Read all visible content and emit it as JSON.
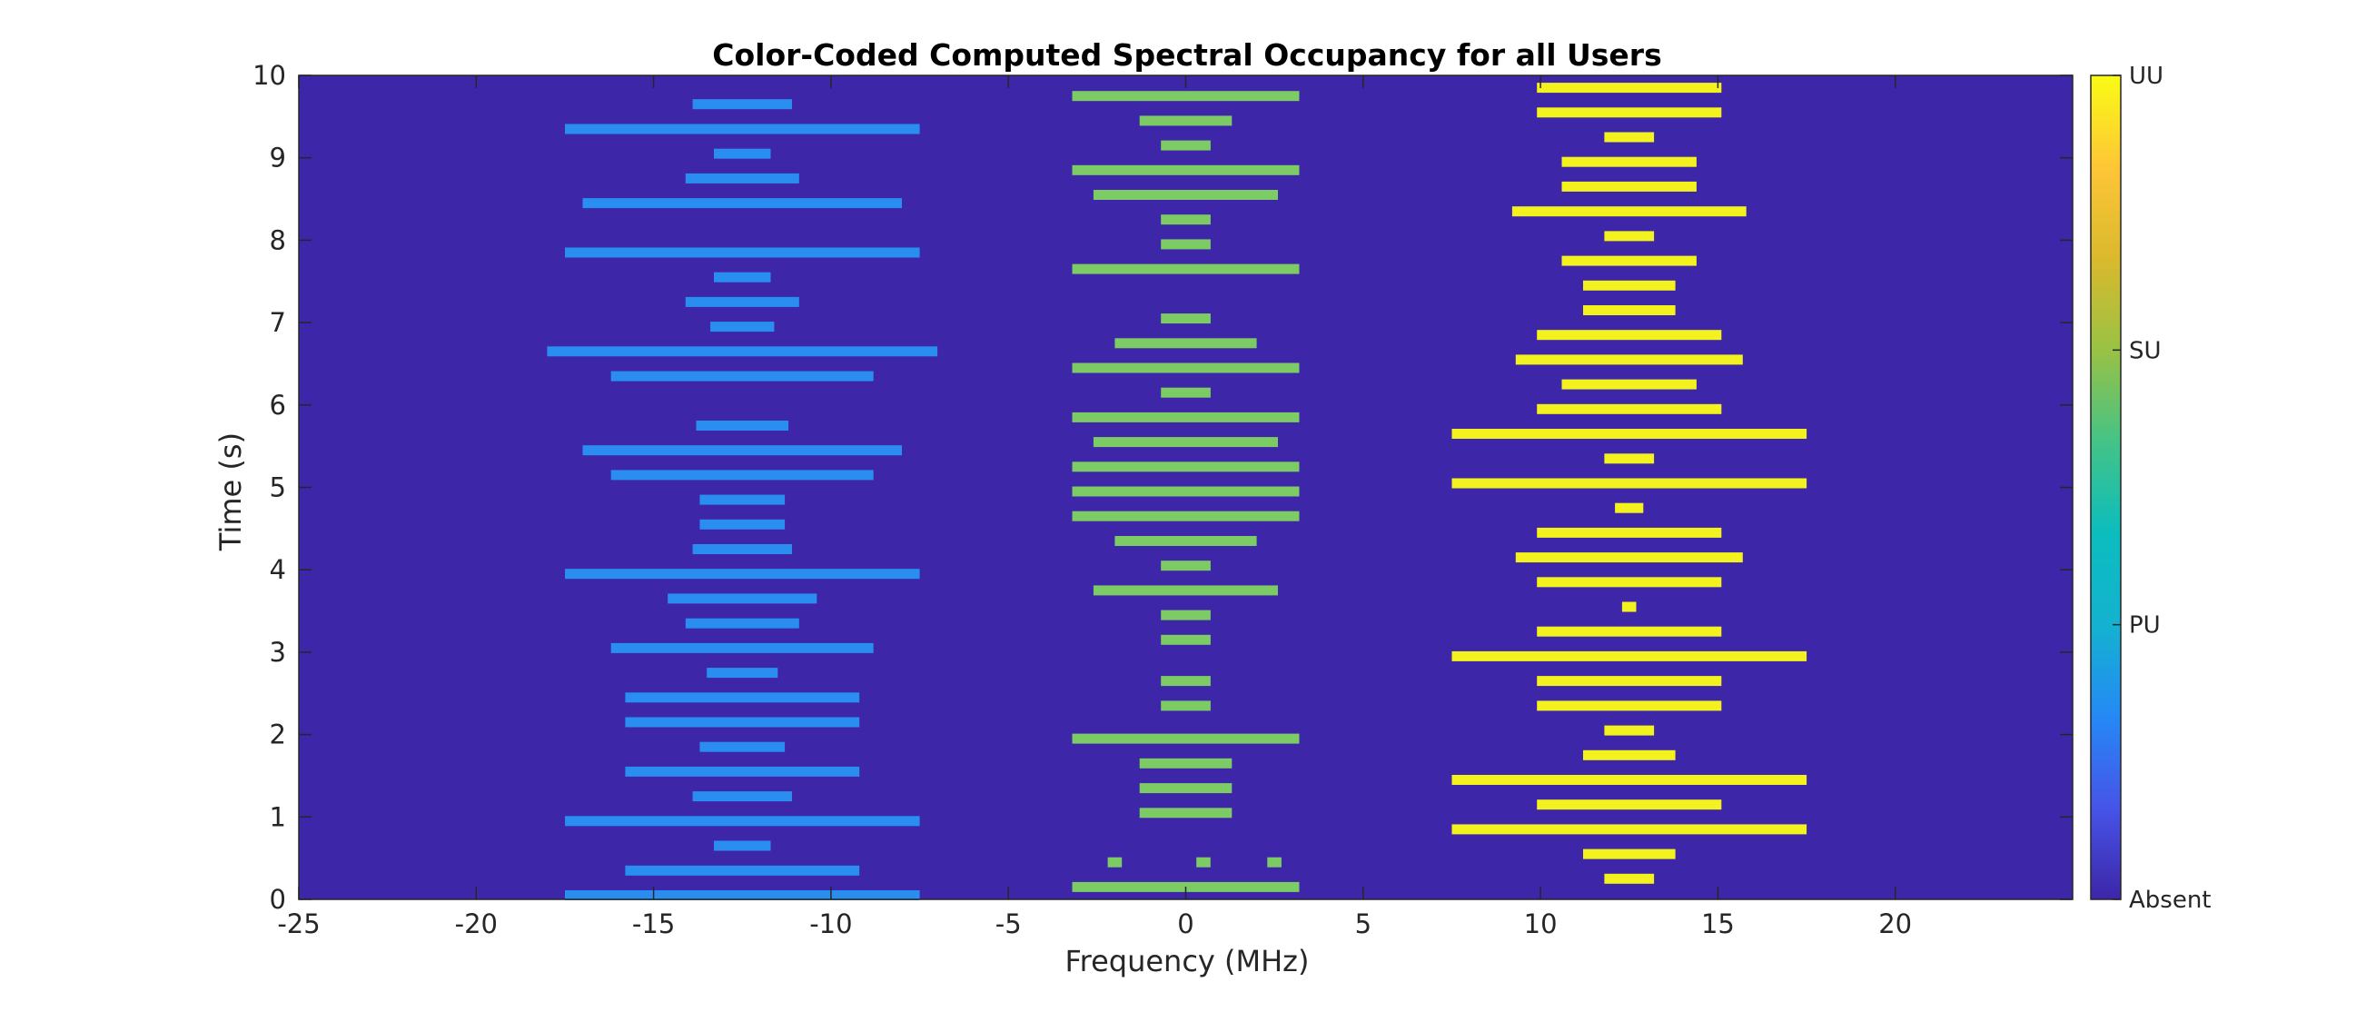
{
  "chart_data": {
    "type": "heatmap",
    "title": "Color-Coded Computed Spectral Occupancy for all Users",
    "xlabel": "Frequency (MHz)",
    "ylabel": "Time (s)",
    "xlim": [
      -25,
      25
    ],
    "ylim": [
      0,
      10
    ],
    "xticks": [
      "-25",
      "-20",
      "-15",
      "-10",
      "-5",
      "0",
      "5",
      "10",
      "15",
      "20"
    ],
    "yticks": [
      "0",
      "1",
      "2",
      "3",
      "4",
      "5",
      "6",
      "7",
      "8",
      "9",
      "10"
    ],
    "grid": false,
    "background_color": "#3d26a8",
    "colorbar": {
      "ticks": [
        "Absent",
        "PU",
        "SU",
        "UU"
      ],
      "colors": [
        "#3d26a8",
        "#4654e8",
        "#2589f5",
        "#14b2d0",
        "#0bbdbe",
        "#45c386",
        "#99c244",
        "#dbb92d",
        "#fec637",
        "#f9fb14"
      ]
    },
    "series": [
      {
        "name": "PU",
        "color": "#2a8ef0",
        "bars": [
          {
            "t": 0.05,
            "f1": -17.5,
            "f2": -7.5
          },
          {
            "t": 0.35,
            "f1": -15.8,
            "f2": -9.2
          },
          {
            "t": 0.65,
            "f1": -13.3,
            "f2": -11.7
          },
          {
            "t": 0.95,
            "f1": -17.5,
            "f2": -7.5
          },
          {
            "t": 1.25,
            "f1": -13.9,
            "f2": -11.1
          },
          {
            "t": 1.55,
            "f1": -15.8,
            "f2": -9.2
          },
          {
            "t": 1.85,
            "f1": -13.7,
            "f2": -11.3
          },
          {
            "t": 2.15,
            "f1": -15.8,
            "f2": -9.2
          },
          {
            "t": 2.45,
            "f1": -15.8,
            "f2": -9.2
          },
          {
            "t": 2.75,
            "f1": -13.5,
            "f2": -11.5
          },
          {
            "t": 3.05,
            "f1": -16.2,
            "f2": -8.8
          },
          {
            "t": 3.35,
            "f1": -14.1,
            "f2": -10.9
          },
          {
            "t": 3.65,
            "f1": -14.6,
            "f2": -10.4
          },
          {
            "t": 3.95,
            "f1": -17.5,
            "f2": -7.5
          },
          {
            "t": 4.25,
            "f1": -13.9,
            "f2": -11.1
          },
          {
            "t": 4.55,
            "f1": -13.7,
            "f2": -11.3
          },
          {
            "t": 4.85,
            "f1": -13.7,
            "f2": -11.3
          },
          {
            "t": 5.15,
            "f1": -16.2,
            "f2": -8.8
          },
          {
            "t": 5.45,
            "f1": -17.0,
            "f2": -8.0
          },
          {
            "t": 5.75,
            "f1": -13.8,
            "f2": -11.2
          },
          {
            "t": 6.35,
            "f1": -16.2,
            "f2": -8.8
          },
          {
            "t": 6.65,
            "f1": -18.0,
            "f2": -7.0
          },
          {
            "t": 6.95,
            "f1": -13.4,
            "f2": -11.6
          },
          {
            "t": 7.25,
            "f1": -14.1,
            "f2": -10.9
          },
          {
            "t": 7.55,
            "f1": -13.3,
            "f2": -11.7
          },
          {
            "t": 7.85,
            "f1": -17.5,
            "f2": -7.5
          },
          {
            "t": 8.45,
            "f1": -17.0,
            "f2": -8.0
          },
          {
            "t": 8.75,
            "f1": -14.1,
            "f2": -10.9
          },
          {
            "t": 9.05,
            "f1": -13.3,
            "f2": -11.7
          },
          {
            "t": 9.35,
            "f1": -17.5,
            "f2": -7.5
          },
          {
            "t": 9.65,
            "f1": -13.9,
            "f2": -11.1
          }
        ]
      },
      {
        "name": "SU",
        "color": "#7ccb65",
        "bars": [
          {
            "t": 0.15,
            "f1": -3.2,
            "f2": 3.2
          },
          {
            "t": 0.45,
            "f1": -2.2,
            "f2": -1.8
          },
          {
            "t": 0.45,
            "f1": 0.3,
            "f2": 0.7
          },
          {
            "t": 0.45,
            "f1": 2.3,
            "f2": 2.7
          },
          {
            "t": 1.05,
            "f1": -1.3,
            "f2": 1.3
          },
          {
            "t": 1.35,
            "f1": -1.3,
            "f2": 1.3
          },
          {
            "t": 1.65,
            "f1": -1.3,
            "f2": 1.3
          },
          {
            "t": 1.95,
            "f1": -3.2,
            "f2": 3.2
          },
          {
            "t": 2.35,
            "f1": -0.7,
            "f2": 0.7
          },
          {
            "t": 2.65,
            "f1": -0.7,
            "f2": 0.7
          },
          {
            "t": 3.15,
            "f1": -0.7,
            "f2": 0.7
          },
          {
            "t": 3.45,
            "f1": -0.7,
            "f2": 0.7
          },
          {
            "t": 3.75,
            "f1": -2.6,
            "f2": 2.6
          },
          {
            "t": 4.05,
            "f1": -0.7,
            "f2": 0.7
          },
          {
            "t": 4.35,
            "f1": -2.0,
            "f2": 2.0
          },
          {
            "t": 4.65,
            "f1": -3.2,
            "f2": 3.2
          },
          {
            "t": 4.95,
            "f1": -3.2,
            "f2": 3.2
          },
          {
            "t": 5.25,
            "f1": -3.2,
            "f2": 3.2
          },
          {
            "t": 5.55,
            "f1": -2.6,
            "f2": 2.6
          },
          {
            "t": 5.85,
            "f1": -3.2,
            "f2": 3.2
          },
          {
            "t": 6.15,
            "f1": -0.7,
            "f2": 0.7
          },
          {
            "t": 6.45,
            "f1": -3.2,
            "f2": 3.2
          },
          {
            "t": 6.75,
            "f1": -2.0,
            "f2": 2.0
          },
          {
            "t": 7.05,
            "f1": -0.7,
            "f2": 0.7
          },
          {
            "t": 7.65,
            "f1": -3.2,
            "f2": 3.2
          },
          {
            "t": 7.95,
            "f1": -0.7,
            "f2": 0.7
          },
          {
            "t": 8.25,
            "f1": -0.7,
            "f2": 0.7
          },
          {
            "t": 8.55,
            "f1": -2.6,
            "f2": 2.6
          },
          {
            "t": 8.85,
            "f1": -3.2,
            "f2": 3.2
          },
          {
            "t": 9.15,
            "f1": -0.7,
            "f2": 0.7
          },
          {
            "t": 9.45,
            "f1": -1.3,
            "f2": 1.3
          },
          {
            "t": 9.75,
            "f1": -3.2,
            "f2": 3.2
          }
        ]
      },
      {
        "name": "UU",
        "color": "#f4f21e",
        "bars": [
          {
            "t": 0.25,
            "f1": 11.8,
            "f2": 13.2
          },
          {
            "t": 0.55,
            "f1": 11.2,
            "f2": 13.8
          },
          {
            "t": 0.85,
            "f1": 7.5,
            "f2": 17.5
          },
          {
            "t": 1.15,
            "f1": 9.9,
            "f2": 15.1
          },
          {
            "t": 1.45,
            "f1": 7.5,
            "f2": 17.5
          },
          {
            "t": 1.75,
            "f1": 11.2,
            "f2": 13.8
          },
          {
            "t": 2.05,
            "f1": 11.8,
            "f2": 13.2
          },
          {
            "t": 2.35,
            "f1": 9.9,
            "f2": 15.1
          },
          {
            "t": 2.65,
            "f1": 9.9,
            "f2": 15.1
          },
          {
            "t": 2.95,
            "f1": 7.5,
            "f2": 17.5
          },
          {
            "t": 3.25,
            "f1": 9.9,
            "f2": 15.1
          },
          {
            "t": 3.55,
            "f1": 12.3,
            "f2": 12.7
          },
          {
            "t": 3.85,
            "f1": 9.9,
            "f2": 15.1
          },
          {
            "t": 4.15,
            "f1": 9.3,
            "f2": 15.7
          },
          {
            "t": 4.45,
            "f1": 9.9,
            "f2": 15.1
          },
          {
            "t": 4.75,
            "f1": 12.1,
            "f2": 12.9
          },
          {
            "t": 5.05,
            "f1": 7.5,
            "f2": 17.5
          },
          {
            "t": 5.35,
            "f1": 11.8,
            "f2": 13.2
          },
          {
            "t": 5.65,
            "f1": 7.5,
            "f2": 17.5
          },
          {
            "t": 5.95,
            "f1": 9.9,
            "f2": 15.1
          },
          {
            "t": 6.25,
            "f1": 10.6,
            "f2": 14.4
          },
          {
            "t": 6.55,
            "f1": 9.3,
            "f2": 15.7
          },
          {
            "t": 6.85,
            "f1": 9.9,
            "f2": 15.1
          },
          {
            "t": 7.15,
            "f1": 11.2,
            "f2": 13.8
          },
          {
            "t": 7.45,
            "f1": 11.2,
            "f2": 13.8
          },
          {
            "t": 7.75,
            "f1": 10.6,
            "f2": 14.4
          },
          {
            "t": 8.05,
            "f1": 11.8,
            "f2": 13.2
          },
          {
            "t": 8.35,
            "f1": 9.2,
            "f2": 15.8
          },
          {
            "t": 8.65,
            "f1": 10.6,
            "f2": 14.4
          },
          {
            "t": 8.95,
            "f1": 10.6,
            "f2": 14.4
          },
          {
            "t": 9.25,
            "f1": 11.8,
            "f2": 13.2
          },
          {
            "t": 9.55,
            "f1": 9.9,
            "f2": 15.1
          },
          {
            "t": 9.85,
            "f1": 9.9,
            "f2": 15.1
          }
        ]
      }
    ]
  }
}
